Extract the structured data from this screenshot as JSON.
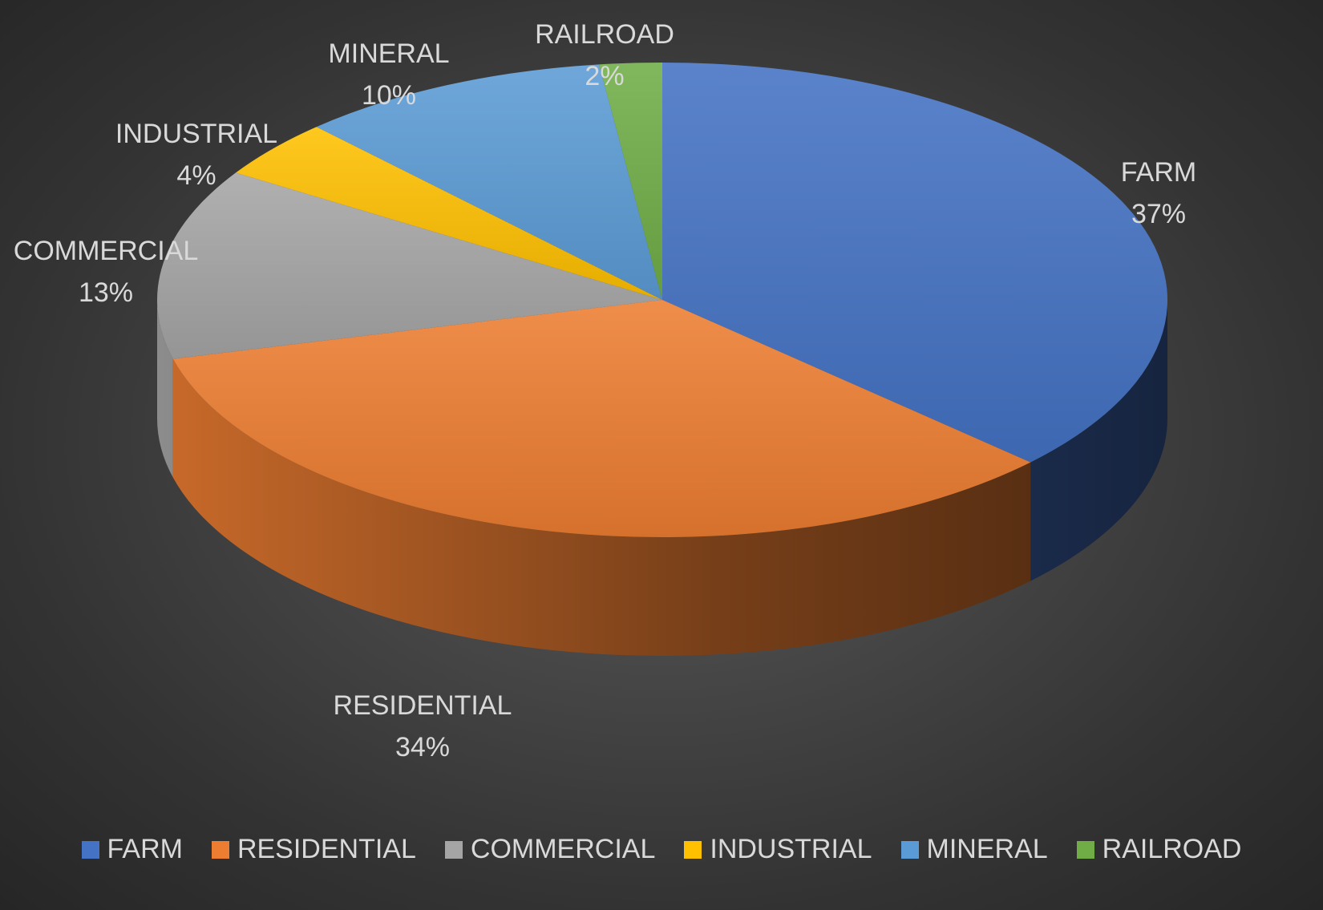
{
  "chart_data": {
    "type": "pie",
    "three_d": true,
    "title": "",
    "slices": [
      {
        "label": "FARM",
        "value": 37,
        "data_label": "37%",
        "color": "#4472c4"
      },
      {
        "label": "RESIDENTIAL",
        "value": 34,
        "data_label": "34%",
        "color": "#ed7d31"
      },
      {
        "label": "COMMERCIAL",
        "value": 13,
        "data_label": "13%",
        "color": "#a5a5a5"
      },
      {
        "label": "INDUSTRIAL",
        "value": 4,
        "data_label": "4%",
        "color": "#ffc000"
      },
      {
        "label": "MINERAL",
        "value": 10,
        "data_label": "10%",
        "color": "#5b9bd5"
      },
      {
        "label": "RAILROAD",
        "value": 2,
        "data_label": "2%",
        "color": "#70ad47"
      }
    ],
    "legend": {
      "position": "bottom",
      "entries": [
        "FARM",
        "RESIDENTIAL",
        "COMMERCIAL",
        "INDUSTRIAL",
        "MINERAL",
        "RAILROAD"
      ]
    },
    "label_color": "#d9d9d9",
    "background": "#404040"
  }
}
